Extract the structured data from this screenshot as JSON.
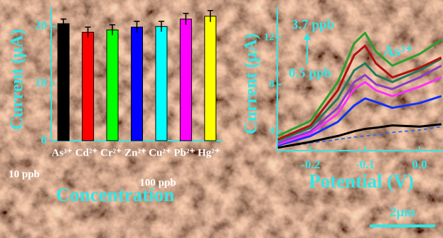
{
  "chart_data": [
    {
      "type": "bar",
      "ylabel": "Current (μA)",
      "xlabel": "Concentration",
      "categories": [
        "As³⁺",
        "Cd²⁺",
        "Cr²⁺",
        "Zn²⁺",
        "Cu²⁺",
        "Pb²⁺",
        "Hg²⁺"
      ],
      "values": [
        20.5,
        19.0,
        19.4,
        19.9,
        20.0,
        21.3,
        21.8
      ],
      "errors": [
        0.8,
        0.9,
        0.9,
        1.0,
        0.9,
        1.0,
        1.0
      ],
      "colors": [
        "#000000",
        "#ff0000",
        "#00ff00",
        "#0000ff",
        "#00ffff",
        "#ff00ff",
        "#ffff00"
      ],
      "ylim": [
        0,
        23.4
      ],
      "yticks": [
        0,
        10,
        20
      ],
      "annotations": [
        "10 ppb",
        "100 ppb"
      ]
    },
    {
      "type": "line",
      "ylabel": "Current (μA)",
      "xlabel": "Potential (V)",
      "x": [
        -0.26,
        -0.2,
        -0.15,
        -0.12,
        -0.1,
        -0.08,
        -0.05,
        0,
        0.04
      ],
      "series": [
        {
          "color": "#3a6fd8",
          "dashed": true,
          "values": [
            2.6,
            3.0,
            3.3,
            3.5,
            3.6,
            3.7,
            3.9,
            4.1,
            4.4
          ]
        },
        {
          "color": "#000000",
          "values": [
            2.6,
            3.1,
            3.6,
            4.0,
            4.2,
            4.3,
            4.5,
            4.4,
            4.6
          ]
        },
        {
          "color": "#1030ff",
          "values": [
            2.8,
            3.6,
            4.8,
            6.2,
            6.8,
            6.5,
            6.0,
            6.4,
            7.0
          ]
        },
        {
          "color": "#ff30ff",
          "values": [
            2.9,
            3.8,
            5.5,
            7.6,
            8.2,
            7.5,
            7.0,
            7.8,
            8.6
          ]
        },
        {
          "color": "#8a3cc8",
          "values": [
            3.0,
            4.0,
            6.0,
            8.2,
            8.8,
            8.0,
            7.6,
            8.6,
            9.6
          ]
        },
        {
          "color": "#207a5a",
          "values": [
            3.2,
            4.3,
            6.8,
            9.2,
            9.8,
            8.8,
            8.2,
            9.2,
            10.2
          ]
        },
        {
          "color": "#b01010",
          "values": [
            3.3,
            4.5,
            7.5,
            10.5,
            11.3,
            9.8,
            8.6,
            9.4,
            10.3
          ]
        },
        {
          "color": "#2aa02a",
          "values": [
            3.6,
            4.9,
            8.2,
            11.5,
            12.4,
            10.8,
            9.6,
            10.6,
            11.8
          ]
        }
      ],
      "xlim": [
        -0.261,
        0.043
      ],
      "ylim": [
        2.35,
        14.6
      ],
      "xticks": [
        {
          "value": -0.2,
          "label": "-0.2"
        },
        {
          "value": -0.1,
          "label": "-0.1"
        },
        {
          "value": 0,
          "label": "0.0"
        }
      ],
      "yticks": [
        4,
        8,
        12
      ],
      "annotations": [
        "3.7 ppb",
        "0.5 ppb",
        "As³⁺"
      ]
    }
  ],
  "scale_bar": "2μm"
}
